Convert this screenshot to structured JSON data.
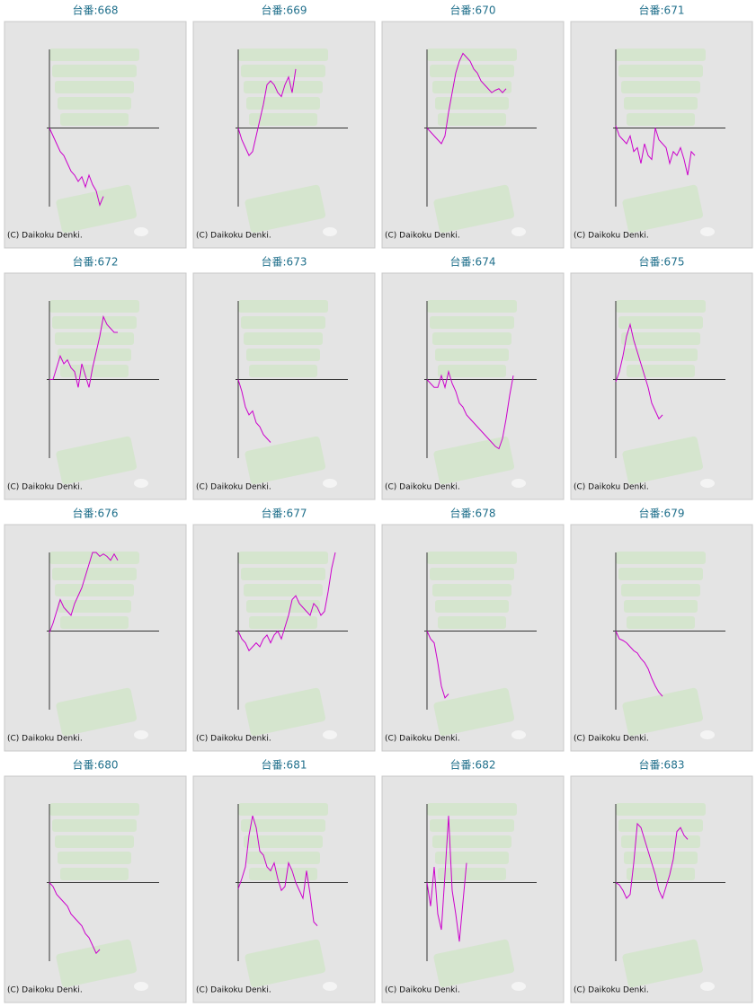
{
  "chart_data": [
    {
      "type": "line",
      "title": "台番:668",
      "copyright": "(C) Daikoku Denki.",
      "color": "#cc00cc",
      "ylim": [
        -100,
        100
      ],
      "values": [
        0,
        -10,
        -20,
        -30,
        -35,
        -45,
        -55,
        -60,
        -68,
        -62,
        -75,
        -60,
        -72,
        -80,
        -98,
        -87
      ]
    },
    {
      "type": "line",
      "title": "台番:669",
      "copyright": "(C) Daikoku Denki.",
      "color": "#cc00cc",
      "ylim": [
        -100,
        100
      ],
      "values": [
        0,
        -15,
        -25,
        -35,
        -30,
        -10,
        10,
        30,
        55,
        60,
        55,
        45,
        40,
        55,
        65,
        45,
        75
      ]
    },
    {
      "type": "line",
      "title": "台番:670",
      "copyright": "(C) Daikoku Denki.",
      "color": "#cc00cc",
      "ylim": [
        -100,
        100
      ],
      "values": [
        0,
        -5,
        -10,
        -15,
        -20,
        -10,
        20,
        45,
        70,
        85,
        95,
        90,
        85,
        75,
        70,
        60,
        55,
        50,
        45,
        48,
        50,
        45,
        50
      ]
    },
    {
      "type": "line",
      "title": "台番:671",
      "copyright": "(C) Daikoku Denki.",
      "color": "#cc00cc",
      "ylim": [
        -100,
        100
      ],
      "values": [
        3,
        -10,
        -15,
        -20,
        -10,
        -30,
        -25,
        -45,
        -20,
        -35,
        -40,
        0,
        -15,
        -20,
        -25,
        -45,
        -30,
        -35,
        -25,
        -40,
        -60,
        -30,
        -35
      ]
    },
    {
      "type": "line",
      "title": "台番:672",
      "copyright": "(C) Daikoku Denki.",
      "color": "#cc00cc",
      "ylim": [
        -100,
        100
      ],
      "values": [
        0,
        0,
        15,
        30,
        20,
        25,
        15,
        10,
        -10,
        20,
        5,
        -10,
        15,
        35,
        55,
        80,
        70,
        65,
        60,
        60
      ]
    },
    {
      "type": "line",
      "title": "台番:673",
      "copyright": "(C) Daikoku Denki.",
      "color": "#cc00cc",
      "ylim": [
        -100,
        100
      ],
      "values": [
        0,
        -15,
        -35,
        -45,
        -40,
        -55,
        -60,
        -70,
        -75,
        -80
      ]
    },
    {
      "type": "line",
      "title": "台番:674",
      "copyright": "(C) Daikoku Denki.",
      "color": "#cc00cc",
      "ylim": [
        -100,
        100
      ],
      "values": [
        0,
        -5,
        -10,
        -10,
        5,
        -10,
        10,
        -5,
        -15,
        -30,
        -35,
        -45,
        -50,
        -55,
        -60,
        -65,
        -70,
        -75,
        -80,
        -85,
        -88,
        -75,
        -50,
        -20,
        5
      ]
    },
    {
      "type": "line",
      "title": "台番:675",
      "copyright": "(C) Daikoku Denki.",
      "color": "#cc00cc",
      "ylim": [
        -100,
        100
      ],
      "values": [
        -3,
        10,
        30,
        55,
        70,
        50,
        35,
        20,
        5,
        -10,
        -30,
        -40,
        -50,
        -45
      ]
    },
    {
      "type": "line",
      "title": "台番:676",
      "copyright": "(C) Daikoku Denki.",
      "color": "#cc00cc",
      "ylim": [
        -100,
        100
      ],
      "values": [
        -2,
        10,
        25,
        40,
        30,
        25,
        20,
        35,
        45,
        55,
        70,
        85,
        100,
        100,
        95,
        98,
        95,
        90,
        98,
        90
      ]
    },
    {
      "type": "line",
      "title": "台番:677",
      "copyright": "(C) Daikoku Denki.",
      "color": "#cc00cc",
      "ylim": [
        -100,
        100
      ],
      "values": [
        0,
        -10,
        -15,
        -25,
        -20,
        -15,
        -20,
        -10,
        -5,
        -15,
        -5,
        0,
        -10,
        5,
        20,
        40,
        45,
        35,
        30,
        25,
        20,
        35,
        30,
        20,
        25,
        50,
        80,
        100
      ]
    },
    {
      "type": "line",
      "title": "台番:678",
      "copyright": "(C) Daikoku Denki.",
      "color": "#cc00cc",
      "ylim": [
        -100,
        100
      ],
      "values": [
        0,
        -10,
        -15,
        -40,
        -70,
        -85,
        -80
      ]
    },
    {
      "type": "line",
      "title": "台番:679",
      "copyright": "(C) Daikoku Denki.",
      "color": "#cc00cc",
      "ylim": [
        -100,
        100
      ],
      "values": [
        0,
        -10,
        -12,
        -15,
        -20,
        -25,
        -28,
        -35,
        -40,
        -48,
        -60,
        -70,
        -78,
        -83
      ]
    },
    {
      "type": "line",
      "title": "台番:680",
      "copyright": "(C) Daikoku Denki.",
      "color": "#cc00cc",
      "ylim": [
        -100,
        100
      ],
      "values": [
        0,
        -5,
        -15,
        -20,
        -25,
        -30,
        -40,
        -45,
        -50,
        -55,
        -65,
        -70,
        -80,
        -90,
        -85
      ]
    },
    {
      "type": "line",
      "title": "台番:681",
      "copyright": "(C) Daikoku Denki.",
      "color": "#cc00cc",
      "ylim": [
        -100,
        100
      ],
      "values": [
        -8,
        5,
        20,
        60,
        85,
        70,
        40,
        35,
        20,
        15,
        25,
        5,
        -10,
        -5,
        25,
        15,
        0,
        -10,
        -20,
        15,
        -15,
        -50,
        -55
      ]
    },
    {
      "type": "line",
      "title": "台番:682",
      "copyright": "(C) Daikoku Denki.",
      "color": "#cc00cc",
      "ylim": [
        -100,
        100
      ],
      "values": [
        0,
        -30,
        20,
        -40,
        -60,
        10,
        85,
        -10,
        -40,
        -75,
        -25,
        25
      ]
    },
    {
      "type": "line",
      "title": "台番:683",
      "copyright": "(C) Daikoku Denki.",
      "color": "#cc00cc",
      "ylim": [
        -100,
        100
      ],
      "values": [
        0,
        -3,
        -10,
        -20,
        -15,
        25,
        75,
        70,
        55,
        40,
        25,
        10,
        -10,
        -20,
        -5,
        10,
        30,
        65,
        70,
        60,
        55
      ]
    }
  ]
}
